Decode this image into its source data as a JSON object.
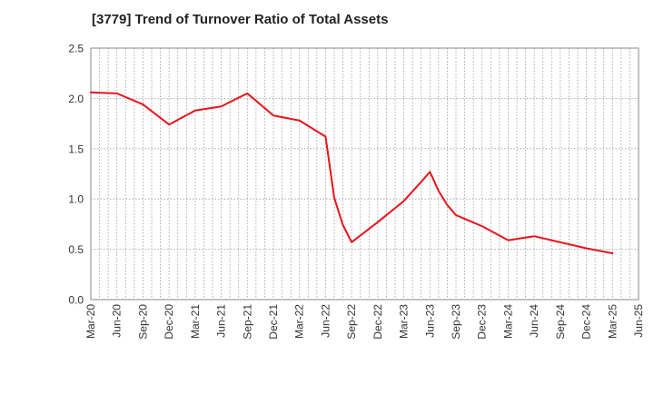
{
  "chart_data": {
    "type": "line",
    "title": "[3779]  Trend of Turnover Ratio of Total Assets",
    "xlabel": "",
    "ylabel": "",
    "ylim": [
      0.0,
      2.5
    ],
    "yticks": [
      "0.0",
      "0.5",
      "1.0",
      "1.5",
      "2.0",
      "2.5"
    ],
    "xticks": [
      "Mar-20",
      "Jun-20",
      "Sep-20",
      "Dec-20",
      "Mar-21",
      "Jun-21",
      "Sep-21",
      "Dec-21",
      "Mar-22",
      "Jun-22",
      "Sep-22",
      "Dec-22",
      "Mar-23",
      "Jun-23",
      "Sep-23",
      "Dec-23",
      "Mar-24",
      "Jun-24",
      "Sep-24",
      "Dec-24",
      "Mar-25",
      "Jun-25"
    ],
    "grid": true,
    "line_color": "#e8141c",
    "series": [
      {
        "points": [
          [
            "Mar-20",
            2.06
          ],
          [
            "Jun-20",
            2.05
          ],
          [
            "Sep-20",
            1.94
          ],
          [
            "Dec-20",
            1.74
          ],
          [
            "Mar-21",
            1.88
          ],
          [
            "Jun-21",
            1.92
          ],
          [
            "Sep-21",
            2.05
          ],
          [
            "Dec-21",
            1.83
          ],
          [
            "Mar-22",
            1.78
          ],
          [
            "Jun-22",
            1.62
          ],
          [
            "Jul-22",
            1.01
          ],
          [
            "Aug-22",
            0.74
          ],
          [
            "Sep-22",
            0.57
          ],
          [
            "Dec-22",
            0.77
          ],
          [
            "Mar-23",
            0.98
          ],
          [
            "May-23",
            1.17
          ],
          [
            "Jun-23",
            1.27
          ],
          [
            "Jul-23",
            1.08
          ],
          [
            "Aug-23",
            0.94
          ],
          [
            "Sep-23",
            0.84
          ],
          [
            "Dec-23",
            0.73
          ],
          [
            "Mar-24",
            0.59
          ],
          [
            "Jun-24",
            0.63
          ],
          [
            "Sep-24",
            0.57
          ],
          [
            "Dec-24",
            0.51
          ],
          [
            "Mar-25",
            0.46
          ]
        ]
      }
    ]
  }
}
